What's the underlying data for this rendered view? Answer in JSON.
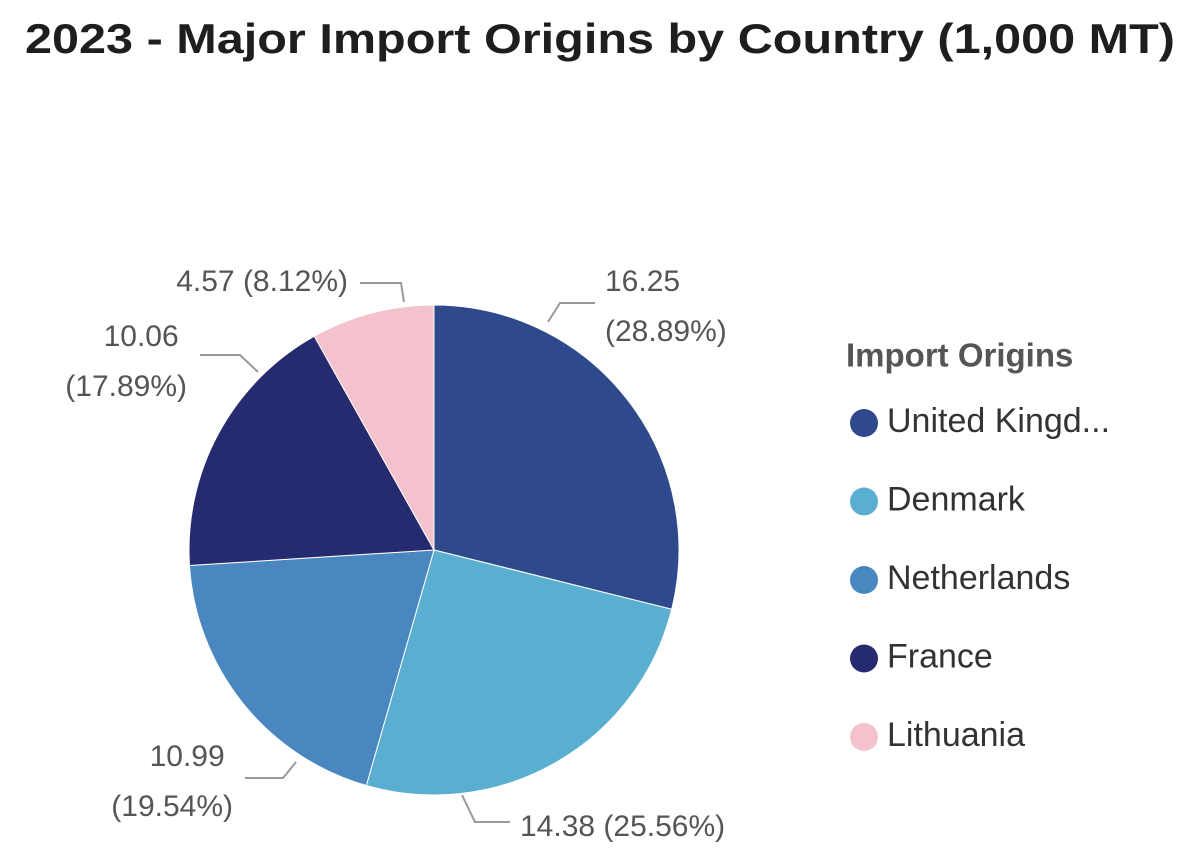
{
  "chart_data": {
    "type": "pie",
    "title": "2023 - Major Import Origins by Country (1,000 MT)",
    "legend_title": "Import Origins",
    "categories": [
      "United Kingd...",
      "Denmark",
      "Netherlands",
      "France",
      "Lithuania"
    ],
    "values": [
      16.25,
      14.38,
      10.99,
      10.06,
      4.57
    ],
    "value_labels": [
      "16.25 (28.89%)",
      "14.38 (25.56%)",
      "10.99 (19.54%)",
      "10.06 (17.89%)",
      "4.57 (8.12%)"
    ],
    "colors": [
      "#2e4a8c",
      "#5aafd0",
      "#4a86c0",
      "#262a6e",
      "#f3c2cc"
    ],
    "legend": "right"
  }
}
